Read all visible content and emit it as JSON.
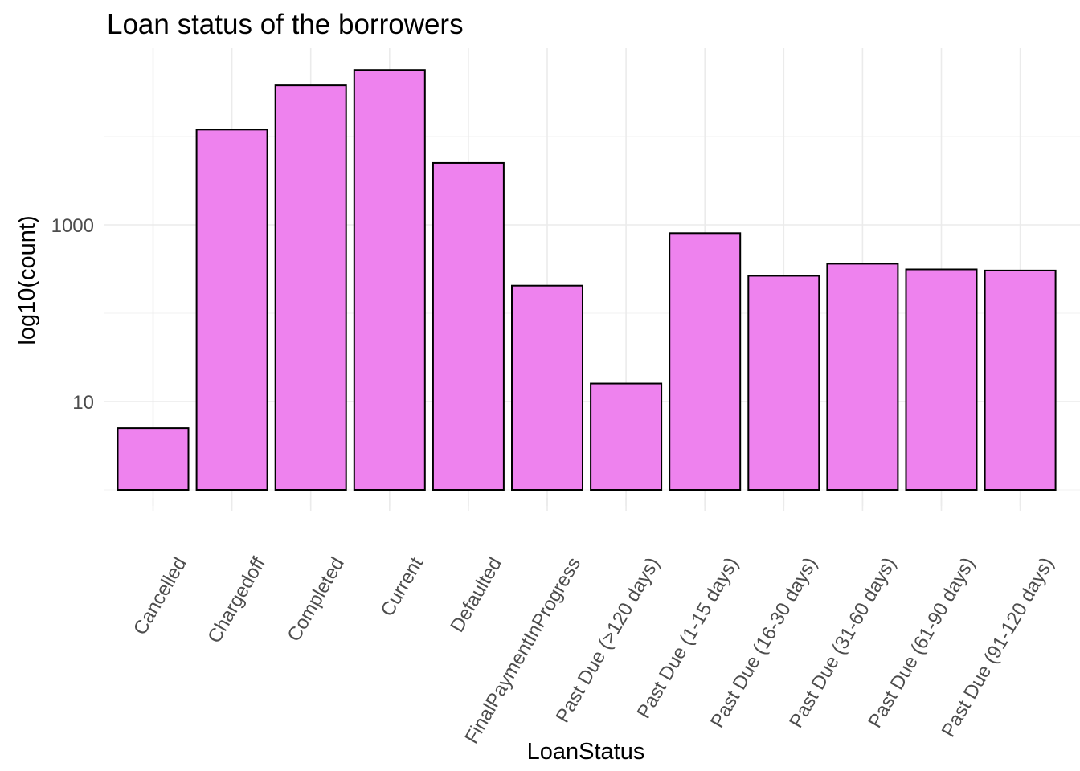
{
  "chart_data": {
    "type": "bar",
    "title": "Loan status of the borrowers",
    "xlabel": "LoanStatus",
    "ylabel": "log10(count)",
    "y_scale": "log10",
    "ylim": [
      1,
      82000
    ],
    "y_ticks": [
      10,
      1000
    ],
    "y_tick_labels": [
      "10",
      "1000"
    ],
    "categories": [
      "Cancelled",
      "Chargedoff",
      "Completed",
      "Current",
      "Defaulted",
      "FinalPaymentInProgress",
      "Past Due (>120 days)",
      "Past Due (1-15 days)",
      "Past Due (16-30 days)",
      "Past Due (31-60 days)",
      "Past Due (61-90 days)",
      "Past Due (91-120 days)"
    ],
    "values": [
      5,
      11992,
      38074,
      56576,
      5018,
      205,
      16,
      806,
      265,
      363,
      313,
      304
    ],
    "bar_fill": "#EE82EE",
    "bar_stroke": "#000000",
    "grid": true,
    "grid_color": "#ebebeb",
    "legend": "none",
    "x_label_rotation": -60
  }
}
